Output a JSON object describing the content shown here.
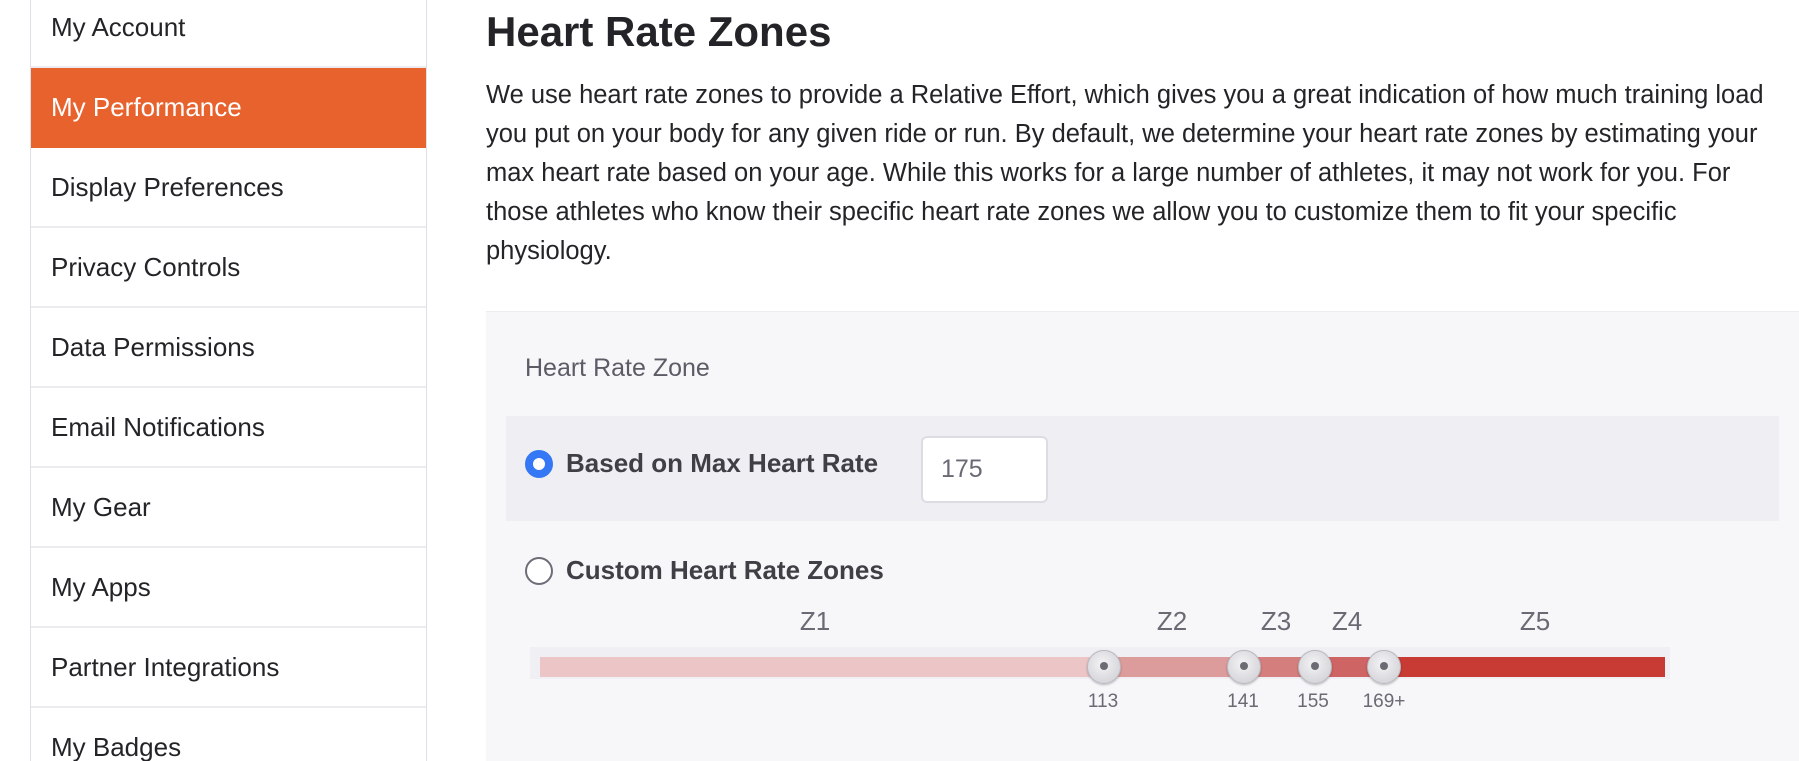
{
  "sidebar": {
    "items": [
      {
        "label": "My Account",
        "active": false
      },
      {
        "label": "My Performance",
        "active": true
      },
      {
        "label": "Display Preferences",
        "active": false
      },
      {
        "label": "Privacy Controls",
        "active": false
      },
      {
        "label": "Data Permissions",
        "active": false
      },
      {
        "label": "Email Notifications",
        "active": false
      },
      {
        "label": "My Gear",
        "active": false
      },
      {
        "label": "My Apps",
        "active": false
      },
      {
        "label": "Partner Integrations",
        "active": false
      },
      {
        "label": "My Badges",
        "active": false
      }
    ]
  },
  "main": {
    "title": "Heart Rate Zones",
    "intro": "We use heart rate zones to provide a Relative Effort, which gives you a great indication of how much training load you put on your body for any given ride or run. By default, we determine your heart rate zones by estimating your max heart rate based on your age. While this works for a large number of athletes, it may not work for you. For those athletes who know their specific heart rate zones we allow you to customize them to fit your specific physiology.",
    "panel": {
      "label": "Heart Rate Zone",
      "max_option": {
        "label": "Based on Max Heart Rate",
        "selected": true,
        "value": "175"
      },
      "custom_option": {
        "label": "Custom Heart Rate Zones",
        "selected": false
      },
      "zones": [
        "Z1",
        "Z2",
        "Z3",
        "Z4",
        "Z5"
      ],
      "thresholds": [
        "113",
        "141",
        "155",
        "169+"
      ],
      "zone_colors": [
        "#ecc6c6",
        "#dd9c9c",
        "#d57e7e",
        "#cf6464",
        "#c73b34"
      ]
    }
  },
  "colors": {
    "accent": "#e8622d",
    "radio_selected": "#3478f6"
  }
}
